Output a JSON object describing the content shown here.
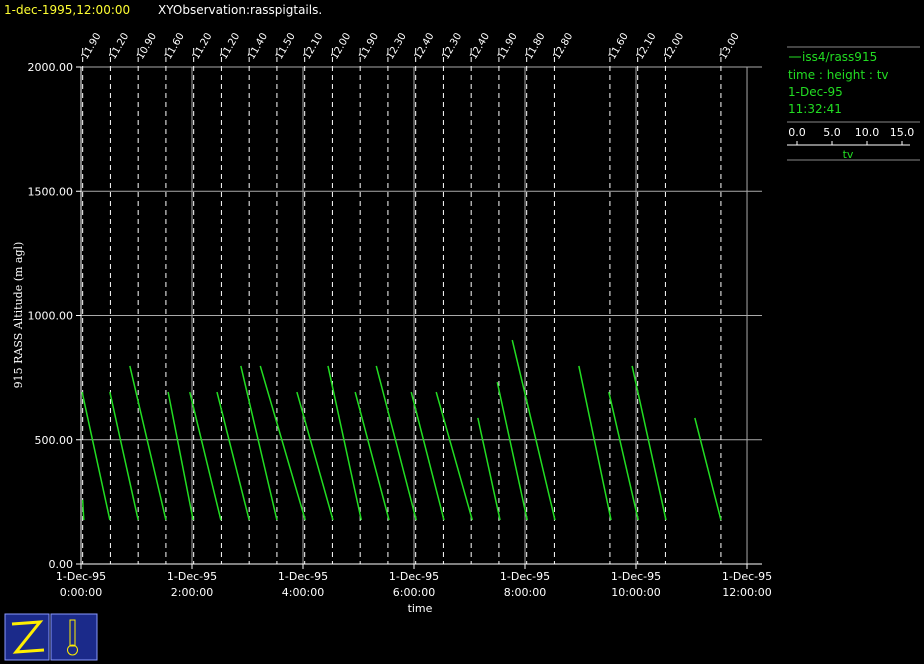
{
  "header": {
    "timestamp": "1-dec-1995,12:00:00",
    "title": "XYObservation:rasspigtails."
  },
  "chart_data": {
    "type": "line",
    "xlabel": "time",
    "ylabel": "915 RASS Altitude (m agl)",
    "xlim": [
      0,
      12.27
    ],
    "ylim": [
      0,
      2000
    ],
    "xticks": [
      {
        "value": 0,
        "label": "1-Dec-95",
        "sublabel": "0:00:00"
      },
      {
        "value": 2,
        "label": "1-Dec-95",
        "sublabel": "2:00:00"
      },
      {
        "value": 4,
        "label": "1-Dec-95",
        "sublabel": "4:00:00"
      },
      {
        "value": 6,
        "label": "1-Dec-95",
        "sublabel": "6:00:00"
      },
      {
        "value": 8,
        "label": "1-Dec-95",
        "sublabel": "8:00:00"
      },
      {
        "value": 10,
        "label": "1-Dec-95",
        "sublabel": "10:00:00"
      },
      {
        "value": 12,
        "label": "1-Dec-95",
        "sublabel": "12:00:00"
      }
    ],
    "yticks": [
      {
        "value": 0,
        "label": "0.00"
      },
      {
        "value": 500,
        "label": "500.00"
      },
      {
        "value": 1000,
        "label": "1000.00"
      },
      {
        "value": 1500,
        "label": "1500.00"
      },
      {
        "value": 2000,
        "label": "2000.00"
      }
    ],
    "grid": true,
    "markers": {
      "x": [
        0.03,
        0.53,
        1.03,
        1.53,
        2.03,
        2.53,
        3.03,
        3.53,
        4.03,
        4.53,
        5.03,
        5.53,
        6.03,
        6.53,
        7.03,
        7.53,
        8.03,
        8.53,
        9.53,
        10.03,
        10.53,
        11.53
      ],
      "labels": [
        "11.90",
        "11.20",
        "10.90",
        "11.60",
        "11.20",
        "11.20",
        "11.40",
        "11.50",
        "12.10",
        "12.00",
        "11.90",
        "12.30",
        "12.40",
        "12.30",
        "12.40",
        "11.90",
        "11.80",
        "12.80",
        "11.60",
        "12.10",
        "12.00",
        "13.00"
      ]
    },
    "series": [
      {
        "name": "iss4/rass915",
        "color": "#22dd22",
        "x": [
          0.03,
          0.05,
          null,
          0.02,
          0.52,
          null,
          0.52,
          1.03,
          null,
          0.88,
          1.53,
          null,
          1.57,
          2.02,
          null,
          1.96,
          2.52,
          null,
          2.45,
          3.03,
          null,
          2.88,
          3.53,
          null,
          3.23,
          4.04,
          null,
          3.89,
          4.54,
          null,
          4.45,
          5.05,
          null,
          4.94,
          5.55,
          null,
          5.32,
          6.04,
          null,
          5.95,
          6.54,
          null,
          6.4,
          7.05,
          null,
          7.15,
          7.55,
          null,
          7.5,
          8.04,
          null,
          7.77,
          8.54,
          null,
          8.97,
          9.55,
          null,
          9.51,
          10.04,
          null,
          9.93,
          10.54,
          null,
          11.06,
          11.53
        ],
        "values": [
          258,
          177,
          null,
          692,
          177,
          null,
          692,
          177,
          null,
          797,
          177,
          null,
          692,
          177,
          null,
          692,
          177,
          null,
          692,
          177,
          null,
          797,
          177,
          null,
          797,
          177,
          null,
          692,
          177,
          null,
          797,
          177,
          null,
          692,
          177,
          null,
          797,
          177,
          null,
          692,
          177,
          null,
          692,
          177,
          null,
          588,
          177,
          null,
          732,
          177,
          null,
          901,
          177,
          null,
          797,
          177,
          null,
          692,
          177,
          null,
          797,
          177,
          null,
          588,
          177
        ]
      }
    ],
    "legend": {
      "axes": "time : height : tv",
      "date": "1-Dec-95",
      "time": "11:32:41",
      "scale": {
        "ticks": [
          {
            "value": 0,
            "label": "0.0"
          },
          {
            "value": 5,
            "label": "5.0"
          },
          {
            "value": 10,
            "label": "10.0"
          },
          {
            "value": 15,
            "label": "15.0"
          }
        ],
        "label": "tv"
      }
    }
  }
}
